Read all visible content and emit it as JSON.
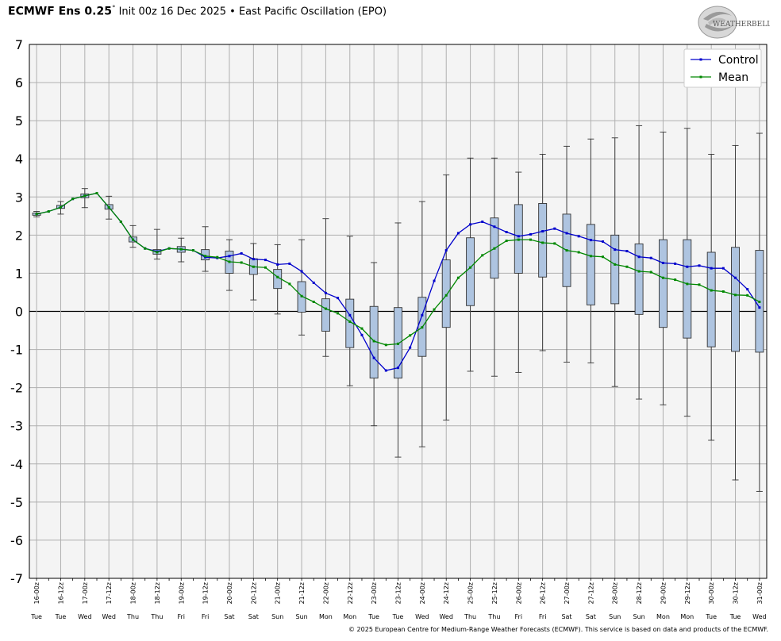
{
  "header": {
    "model": "ECMWF Ens 0.25",
    "degree": "°",
    "rest": " Init 00z 16 Dec 2025 • East Pacific Oscillation (EPO)"
  },
  "logo": {
    "text": "WEATHERBELL"
  },
  "footer": {
    "copyright": "© 2025 European Centre for Medium-Range Weather Forecasts (ECMWF). This service is based on data and products of the ECMWF."
  },
  "colors": {
    "control": "#0000cc",
    "mean": "#008800",
    "box_fill": "#aec4e0",
    "plot_bg": "#f4f4f4",
    "grid": "#b0b0b0"
  },
  "chart_data": {
    "type": "box-line",
    "ylim": [
      -7,
      7
    ],
    "yticks": [
      -7,
      -6,
      -5,
      -4,
      -3,
      -2,
      -1,
      0,
      1,
      2,
      3,
      4,
      5,
      6,
      7
    ],
    "legend_position": "top-right",
    "grid": true,
    "categories": [
      "16-00z",
      "16-12z",
      "17-00z",
      "17-12z",
      "18-00z",
      "18-12z",
      "19-00z",
      "19-12z",
      "20-00z",
      "20-12z",
      "21-00z",
      "21-12z",
      "22-00z",
      "22-12z",
      "23-00z",
      "23-12z",
      "24-00z",
      "24-12z",
      "25-00z",
      "25-12z",
      "26-00z",
      "26-12z",
      "27-00z",
      "27-12z",
      "28-00z",
      "28-12z",
      "29-00z",
      "29-12z",
      "30-00z",
      "30-12z",
      "31-00z"
    ],
    "weekdays": [
      "Tue",
      "Tue",
      "Wed",
      "Wed",
      "Thu",
      "Thu",
      "Fri",
      "Fri",
      "Sat",
      "Sat",
      "Sun",
      "Sun",
      "Mon",
      "Mon",
      "Tue",
      "Tue",
      "Wed",
      "Wed",
      "Thu",
      "Thu",
      "Fri",
      "Fri",
      "Sat",
      "Sat",
      "Sun",
      "Sun",
      "Mon",
      "Mon",
      "Tue",
      "Tue",
      "Wed"
    ],
    "x": [
      0,
      0.25,
      0.5,
      0.75,
      1,
      1.25,
      1.5,
      1.75,
      2,
      2.25,
      2.5,
      2.75,
      3,
      3.25,
      3.5,
      3.75,
      4,
      4.25,
      4.5,
      4.75,
      5,
      5.25,
      5.5,
      5.75,
      6,
      6.25,
      6.5,
      6.75,
      7,
      7.25,
      7.5,
      7.75,
      8,
      8.25,
      8.5,
      8.75,
      9,
      9.25,
      9.5,
      9.75,
      10,
      10.25,
      10.5,
      10.75,
      11,
      11.25,
      11.5,
      11.75,
      12,
      12.25,
      12.5,
      12.75,
      13,
      13.25,
      13.5,
      13.75,
      14,
      14.25,
      14.5,
      14.75,
      15
    ],
    "series": [
      {
        "name": "Control",
        "values": [
          2.55,
          2.62,
          2.73,
          2.95,
          3.03,
          3.1,
          2.73,
          2.35,
          1.88,
          1.65,
          1.57,
          1.65,
          1.63,
          1.6,
          1.42,
          1.4,
          1.45,
          1.52,
          1.37,
          1.35,
          1.23,
          1.25,
          1.05,
          0.75,
          0.48,
          0.35,
          -0.1,
          -0.62,
          -1.22,
          -1.55,
          -1.48,
          -0.95,
          -0.1,
          0.8,
          1.6,
          2.05,
          2.28,
          2.35,
          2.22,
          2.08,
          1.97,
          2.02,
          2.1,
          2.17,
          2.05,
          1.97,
          1.87,
          1.83,
          1.62,
          1.58,
          1.43,
          1.4,
          1.27,
          1.25,
          1.17,
          1.2,
          1.13,
          1.13,
          0.88,
          0.58,
          0.1
        ]
      },
      {
        "name": "Mean",
        "values": [
          2.55,
          2.62,
          2.73,
          2.95,
          3.03,
          3.1,
          2.73,
          2.35,
          1.88,
          1.65,
          1.55,
          1.65,
          1.63,
          1.6,
          1.45,
          1.42,
          1.3,
          1.28,
          1.17,
          1.15,
          0.9,
          0.72,
          0.4,
          0.25,
          0.07,
          -0.05,
          -0.27,
          -0.45,
          -0.78,
          -0.88,
          -0.85,
          -0.63,
          -0.42,
          0.05,
          0.42,
          0.88,
          1.15,
          1.47,
          1.65,
          1.85,
          1.88,
          1.88,
          1.8,
          1.78,
          1.6,
          1.55,
          1.45,
          1.43,
          1.23,
          1.17,
          1.05,
          1.03,
          0.88,
          0.83,
          0.72,
          0.7,
          0.55,
          0.52,
          0.43,
          0.42,
          0.25
        ]
      }
    ],
    "boxes": [
      {
        "x": 0,
        "min": 2.48,
        "q1": 2.52,
        "q3": 2.58,
        "max": 2.62
      },
      {
        "x": 0.5,
        "min": 2.55,
        "q1": 2.7,
        "q3": 2.78,
        "max": 2.88
      },
      {
        "x": 1,
        "min": 2.72,
        "q1": 2.98,
        "q3": 3.08,
        "max": 3.22
      },
      {
        "x": 1.5,
        "min": 2.42,
        "q1": 2.68,
        "q3": 2.8,
        "max": 3.02
      },
      {
        "x": 2,
        "min": 1.68,
        "q1": 1.82,
        "q3": 1.95,
        "max": 2.25
      },
      {
        "x": 2.5,
        "min": 1.37,
        "q1": 1.5,
        "q3": 1.62,
        "max": 2.15
      },
      {
        "x": 3,
        "min": 1.3,
        "q1": 1.55,
        "q3": 1.7,
        "max": 1.92
      },
      {
        "x": 3.5,
        "min": 1.05,
        "q1": 1.35,
        "q3": 1.62,
        "max": 2.22
      },
      {
        "x": 4,
        "min": 0.55,
        "q1": 1.0,
        "q3": 1.58,
        "max": 1.88
      },
      {
        "x": 4.5,
        "min": 0.3,
        "q1": 0.97,
        "q3": 1.38,
        "max": 1.78
      },
      {
        "x": 5,
        "min": -0.07,
        "q1": 0.6,
        "q3": 1.1,
        "max": 1.75
      },
      {
        "x": 5.5,
        "min": -0.62,
        "q1": -0.02,
        "q3": 0.78,
        "max": 1.88
      },
      {
        "x": 6,
        "min": -1.18,
        "q1": -0.52,
        "q3": 0.33,
        "max": 2.43
      },
      {
        "x": 6.5,
        "min": -1.95,
        "q1": -0.95,
        "q3": 0.32,
        "max": 1.97
      },
      {
        "x": 7,
        "min": -3.0,
        "q1": -1.75,
        "q3": 0.13,
        "max": 1.28
      },
      {
        "x": 7.5,
        "min": -3.82,
        "q1": -1.75,
        "q3": 0.1,
        "max": 2.32
      },
      {
        "x": 8,
        "min": -3.55,
        "q1": -1.18,
        "q3": 0.37,
        "max": 2.88
      },
      {
        "x": 8.5,
        "min": -2.85,
        "q1": -0.42,
        "q3": 1.35,
        "max": 3.58
      },
      {
        "x": 9,
        "min": -1.57,
        "q1": 0.15,
        "q3": 1.93,
        "max": 4.02
      },
      {
        "x": 9.5,
        "min": -1.7,
        "q1": 0.87,
        "q3": 2.45,
        "max": 4.02
      },
      {
        "x": 10,
        "min": -1.6,
        "q1": 1.0,
        "q3": 2.8,
        "max": 3.65
      },
      {
        "x": 10.5,
        "min": -1.03,
        "q1": 0.9,
        "q3": 2.83,
        "max": 4.12
      },
      {
        "x": 11,
        "min": -1.33,
        "q1": 0.65,
        "q3": 2.55,
        "max": 4.33
      },
      {
        "x": 11.5,
        "min": -1.35,
        "q1": 0.17,
        "q3": 2.28,
        "max": 4.52
      },
      {
        "x": 12,
        "min": -1.97,
        "q1": 0.2,
        "q3": 2.0,
        "max": 4.55
      },
      {
        "x": 12.5,
        "min": -2.3,
        "q1": -0.08,
        "q3": 1.77,
        "max": 4.87
      },
      {
        "x": 13,
        "min": -2.45,
        "q1": -0.42,
        "q3": 1.88,
        "max": 4.7
      },
      {
        "x": 13.5,
        "min": -2.75,
        "q1": -0.7,
        "q3": 1.88,
        "max": 4.8
      },
      {
        "x": 14,
        "min": -3.38,
        "q1": -0.93,
        "q3": 1.55,
        "max": 4.12
      },
      {
        "x": 14.5,
        "min": -4.42,
        "q1": -1.05,
        "q3": 1.68,
        "max": 4.35
      },
      {
        "x": 15,
        "min": -4.72,
        "q1": -1.07,
        "q3": 1.6,
        "max": 4.67
      }
    ]
  }
}
